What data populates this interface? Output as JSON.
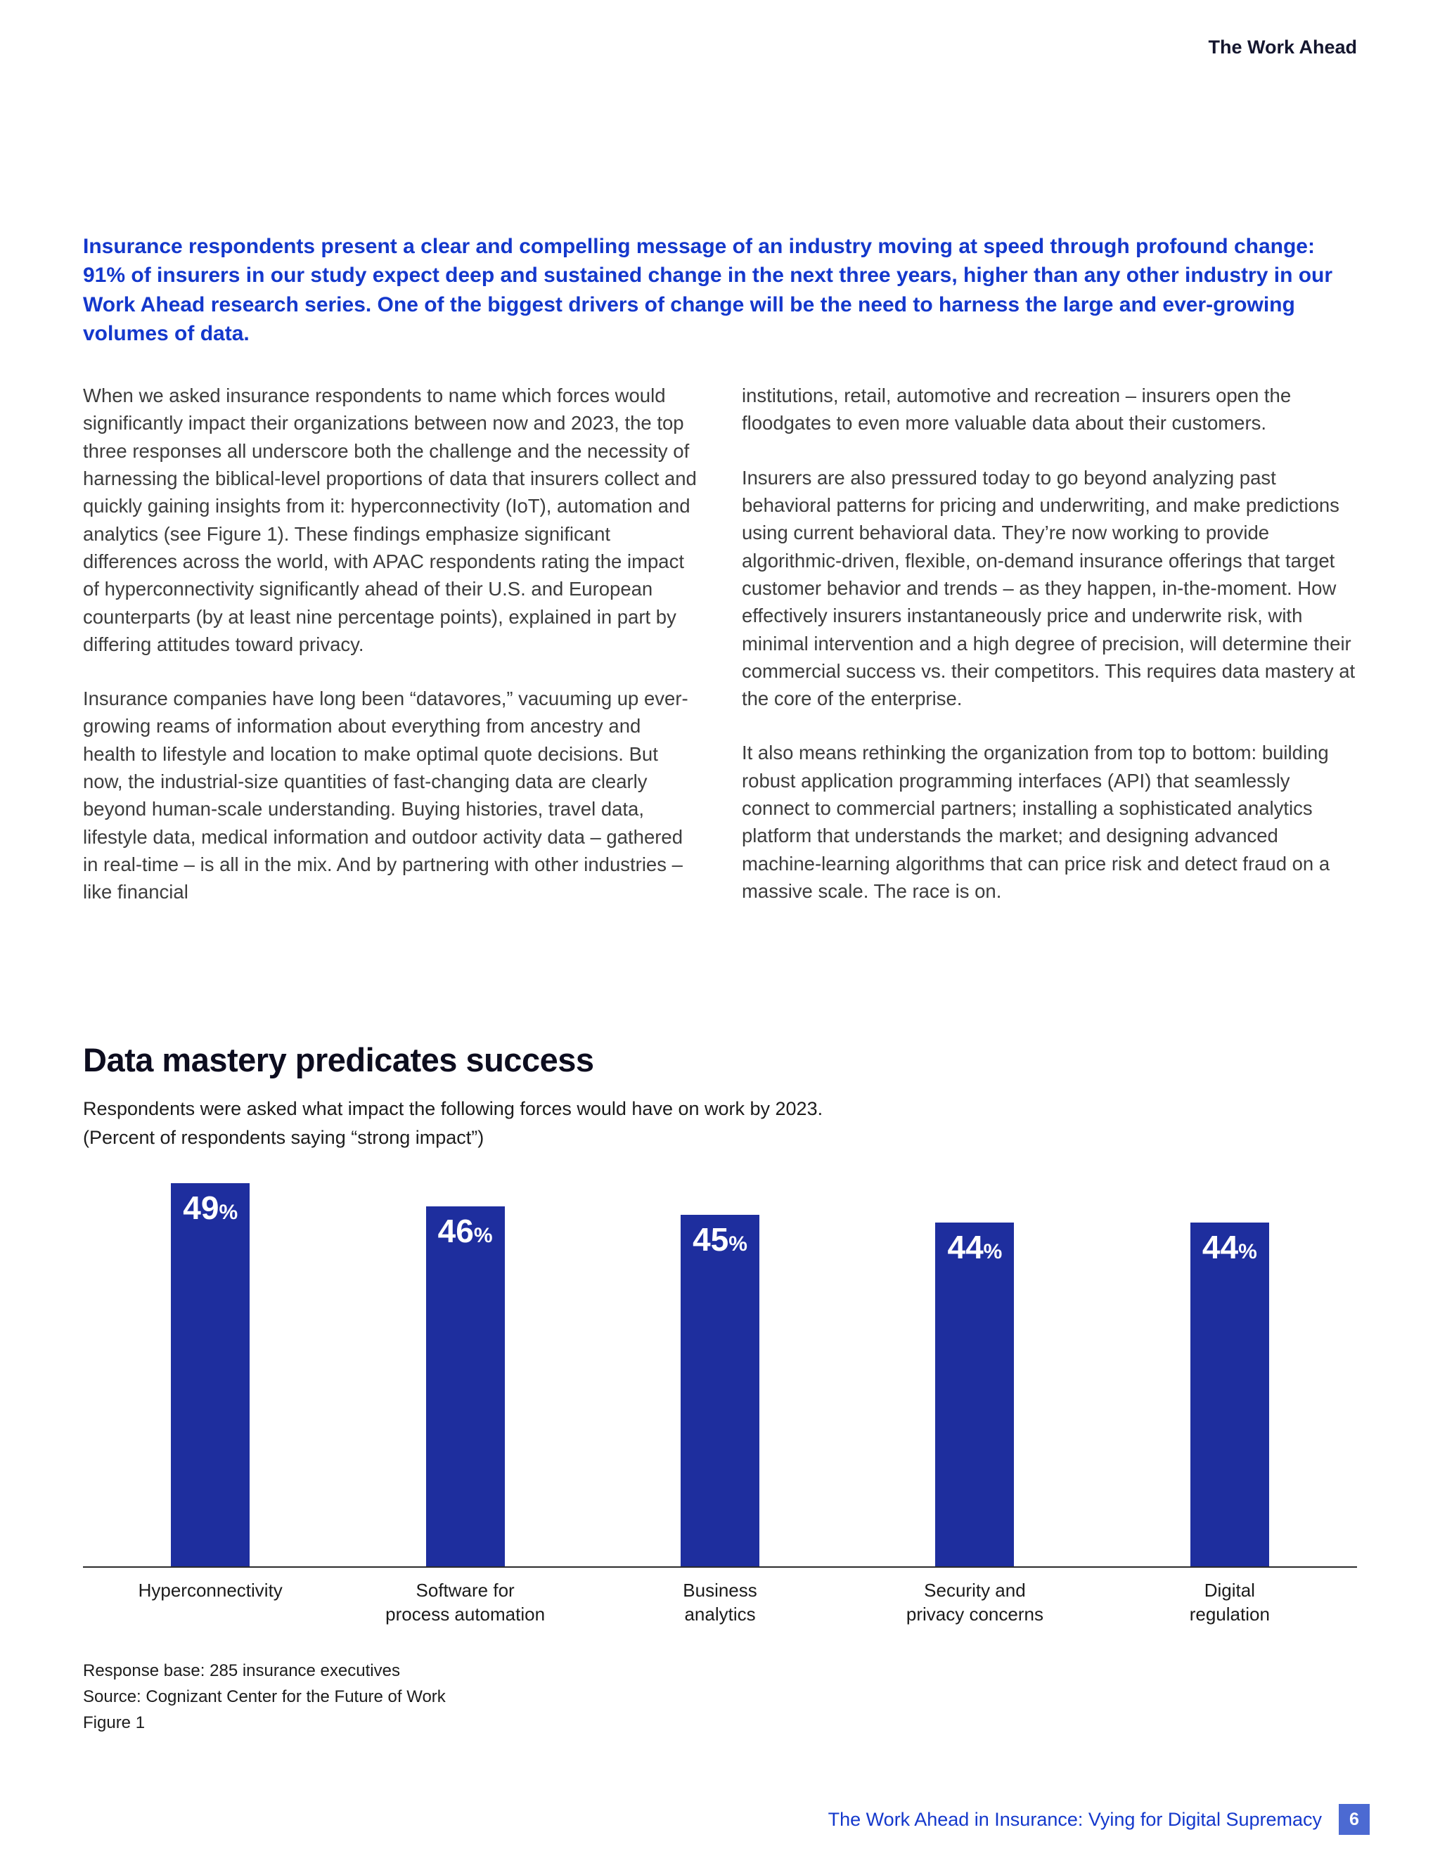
{
  "header": {
    "label": "The Work Ahead"
  },
  "intro": {
    "text": "Insurance respondents present a clear and compelling message of an industry moving at speed through profound change: 91% of insurers in our study expect deep and sustained change in the next three years, higher than any other industry in our Work Ahead research series. One of the biggest drivers of change will be the need to harness the large and ever-growing volumes of data."
  },
  "body": {
    "left": [
      "When we asked insurance respondents to name which forces would significantly impact their organizations between now and 2023, the top three responses all underscore both the challenge and the necessity of harnessing the biblical-level proportions of data that insurers collect and quickly gaining insights from it: hyperconnectivity (IoT), automation and analytics (see Figure 1). These findings emphasize significant differences across the world, with APAC respondents rating the impact of hyperconnectivity significantly ahead of their U.S. and European counterparts (by at least nine percentage points), explained in part by differing attitudes toward privacy.",
      "Insurance companies have long been “datavores,” vacuuming up ever-growing reams of information about everything from ancestry and health to lifestyle and location to make optimal quote decisions. But now, the industrial-size quantities of fast-changing data are clearly beyond human-scale understanding. Buying histories, travel data, lifestyle data, medical information and outdoor activity data – gathered in real-time – is all in the mix. And by partnering with other industries – like financial"
    ],
    "right": [
      "institutions, retail, automotive and recreation – insurers open the floodgates to even more valuable data about their customers.",
      "Insurers are also pressured today to go beyond analyzing past behavioral patterns for pricing and underwriting, and make predictions using current behavioral data. They’re now working to provide algorithmic-driven, flexible, on-demand insurance offerings that target customer behavior and trends – as they happen, in-the-moment. How effectively insurers instantaneously price and underwrite risk, with minimal intervention and a high degree of precision, will determine their commercial success vs. their competitors. This requires data mastery at the core of the enterprise.",
      "It also means rethinking the organization from top to bottom: building robust application programming interfaces (API) that seamlessly connect to commercial partners; installing a sophisticated analytics platform that understands the market; and designing advanced machine-learning algorithms that can price risk and detect fraud on a massive scale. The race is on."
    ]
  },
  "figure": {
    "title": "Data mastery predicates success",
    "subtitle": "Respondents were asked what impact the following forces would have on work by 2023.\n(Percent of respondents saying “strong impact”)",
    "footnotes": [
      "Response base: 285 insurance executives",
      "Source: Cognizant Center for the Future of Work",
      "Figure 1"
    ]
  },
  "chart_data": {
    "type": "bar",
    "title": "Data mastery predicates success",
    "subtitle": "Respondents were asked what impact the following forces would have on work by 2023. (Percent of respondents saying “strong impact”)",
    "categories": [
      "Hyperconnectivity",
      "Software for\nprocess automation",
      "Business\nanalytics",
      "Security and\nprivacy concerns",
      "Digital\nregulation"
    ],
    "values": [
      49,
      46,
      45,
      44,
      44
    ],
    "unit": "%",
    "value_labels": "inside-top",
    "xlabel": "",
    "ylabel": "",
    "ylim": [
      0,
      50
    ],
    "grid": false,
    "legend": false,
    "bar_color": "#1e2e9e"
  },
  "footer": {
    "title": "The Work Ahead in Insurance: Vying for Digital Supremacy",
    "page_number": "6"
  },
  "colors": {
    "accent_blue": "#1438cc",
    "bar_blue": "#1e2e9e",
    "page_box_blue": "#4c6ad2",
    "heading_dark": "#0d0d1f",
    "body_text": "#3d3d3d"
  }
}
